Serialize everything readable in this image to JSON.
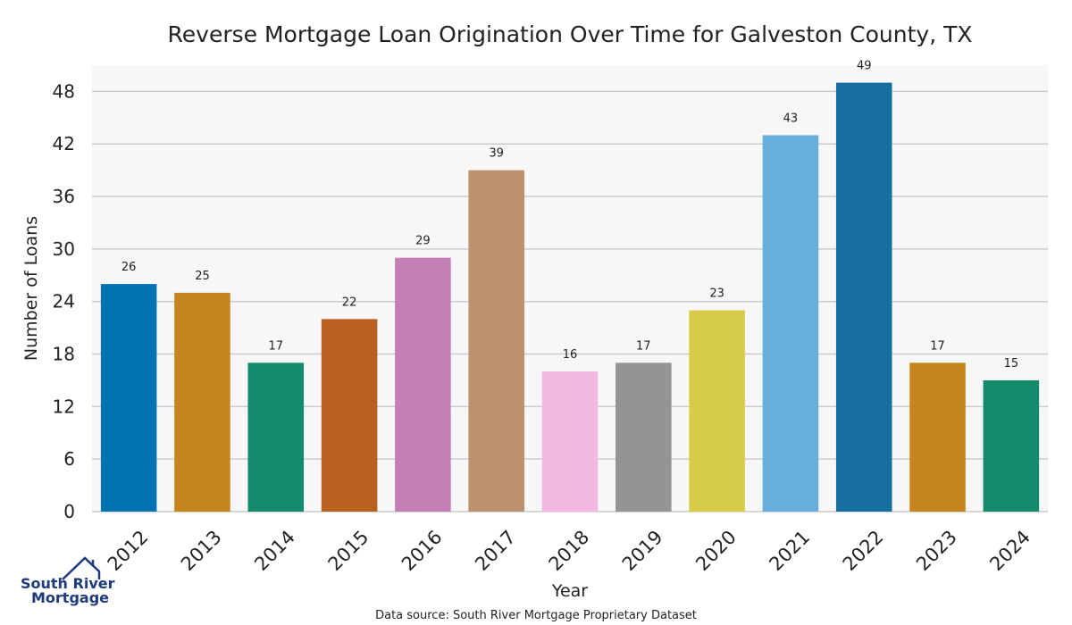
{
  "chart_data": {
    "type": "bar",
    "title": "Reverse Mortgage Loan Origination Over Time for Galveston County, TX",
    "xlabel": "Year",
    "ylabel": "Number of Loans",
    "ylim": [
      0,
      51
    ],
    "yticks": [
      0,
      6,
      12,
      18,
      24,
      30,
      36,
      42,
      48
    ],
    "grid": true,
    "categories": [
      "2012",
      "2013",
      "2014",
      "2015",
      "2016",
      "2017",
      "2018",
      "2019",
      "2020",
      "2021",
      "2022",
      "2023",
      "2024"
    ],
    "values": [
      26,
      25,
      17,
      22,
      29,
      39,
      16,
      17,
      23,
      43,
      49,
      17,
      15
    ],
    "colors": [
      "#0173b2",
      "#c6851d",
      "#138b6a",
      "#b8601e",
      "#c480b6",
      "#bc916e",
      "#f2b8e0",
      "#949494",
      "#d7cc48",
      "#67afda",
      "#176ea0",
      "#c6851d",
      "#138b6a"
    ],
    "background": "#f7f7f7",
    "grid_color": "#cccccc"
  },
  "source_note": "Data source: South River Mortgage Proprietary Dataset",
  "logo": {
    "line1": "South River",
    "line2": "Mortgage",
    "color": "#1f3a7a",
    "icon": "house-icon"
  }
}
